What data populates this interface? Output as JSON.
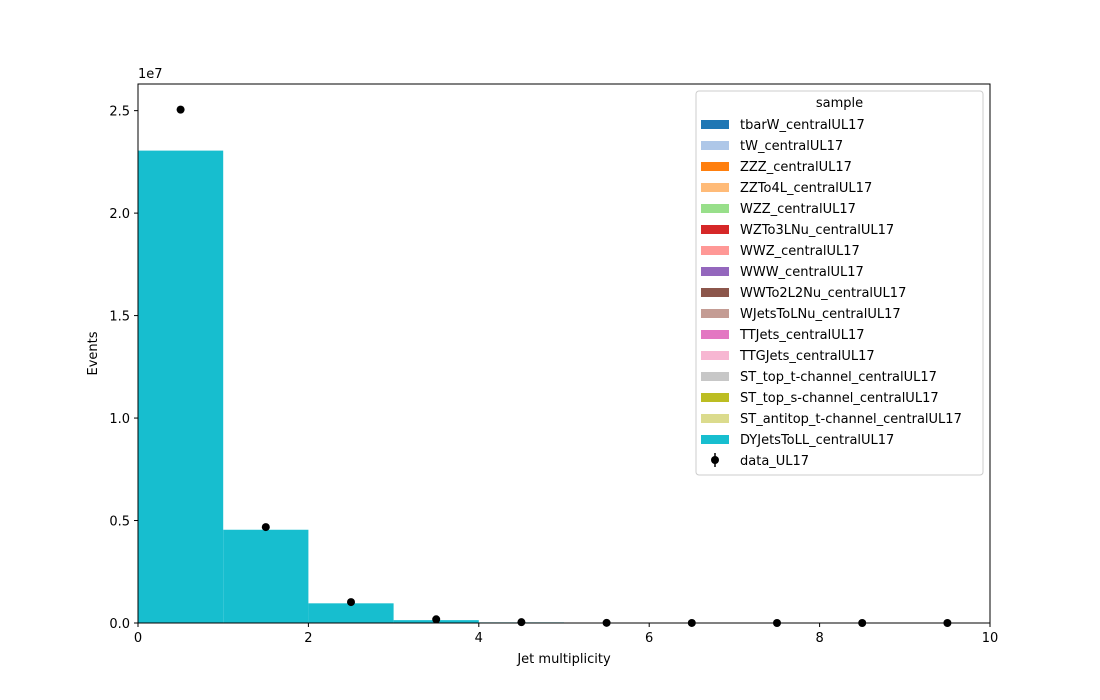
{
  "chart_data": {
    "type": "bar",
    "title": "",
    "xlabel": "Jet multiplicity",
    "ylabel": "Events",
    "y_offset_text": "1e7",
    "y_scale_factor": 10000000,
    "xlim": [
      0,
      10
    ],
    "ylim": [
      0,
      26300000
    ],
    "x_ticks": [
      0,
      2,
      4,
      6,
      8,
      10
    ],
    "x_tick_labels": [
      "0",
      "2",
      "4",
      "6",
      "8",
      "10"
    ],
    "y_ticks": [
      0,
      5000000,
      10000000,
      15000000,
      20000000,
      25000000
    ],
    "y_tick_labels": [
      "0.0",
      "0.5",
      "1.0",
      "1.5",
      "2.0",
      "2.5"
    ],
    "grid": false,
    "stacked": true,
    "bin_edges": [
      0,
      1,
      2,
      3,
      4,
      5,
      6,
      7,
      8,
      9,
      10
    ],
    "legend": {
      "title": "sample",
      "placement": "upper right"
    },
    "series": [
      {
        "name": "tbarW_centralUL17",
        "color": "#1f77b4",
        "values": [
          0,
          0,
          0,
          0,
          0,
          0,
          0,
          0,
          0,
          0
        ]
      },
      {
        "name": "tW_centralUL17",
        "color": "#aec7e8",
        "values": [
          0,
          0,
          0,
          0,
          0,
          0,
          0,
          0,
          0,
          0
        ]
      },
      {
        "name": "ZZZ_centralUL17",
        "color": "#ff7f0e",
        "values": [
          0,
          0,
          0,
          0,
          0,
          0,
          0,
          0,
          0,
          0
        ]
      },
      {
        "name": "ZZTo4L_centralUL17",
        "color": "#ffbb78",
        "values": [
          0,
          0,
          0,
          0,
          0,
          0,
          0,
          0,
          0,
          0
        ]
      },
      {
        "name": "WZZ_centralUL17",
        "color": "#98df8a",
        "values": [
          0,
          0,
          0,
          0,
          0,
          0,
          0,
          0,
          0,
          0
        ]
      },
      {
        "name": "WZTo3LNu_centralUL17",
        "color": "#d62728",
        "values": [
          0,
          0,
          0,
          0,
          0,
          0,
          0,
          0,
          0,
          0
        ]
      },
      {
        "name": "WWZ_centralUL17",
        "color": "#ff9896",
        "values": [
          0,
          0,
          0,
          0,
          0,
          0,
          0,
          0,
          0,
          0
        ]
      },
      {
        "name": "WWW_centralUL17",
        "color": "#9467bd",
        "values": [
          0,
          0,
          0,
          0,
          0,
          0,
          0,
          0,
          0,
          0
        ]
      },
      {
        "name": "WWTo2L2Nu_centralUL17",
        "color": "#8c564b",
        "values": [
          0,
          0,
          0,
          0,
          0,
          0,
          0,
          0,
          0,
          0
        ]
      },
      {
        "name": "WJetsToLNu_centralUL17",
        "color": "#c49c94",
        "values": [
          0,
          0,
          0,
          0,
          0,
          0,
          0,
          0,
          0,
          0
        ]
      },
      {
        "name": "TTJets_centralUL17",
        "color": "#e377c2",
        "values": [
          0,
          0,
          0,
          0,
          0,
          0,
          0,
          0,
          0,
          0
        ]
      },
      {
        "name": "TTGJets_centralUL17",
        "color": "#f7b6d2",
        "values": [
          0,
          0,
          0,
          0,
          0,
          0,
          0,
          0,
          0,
          0
        ]
      },
      {
        "name": "ST_top_t-channel_centralUL17",
        "color": "#c7c7c7",
        "values": [
          0,
          0,
          0,
          0,
          0,
          0,
          0,
          0,
          0,
          0
        ]
      },
      {
        "name": "ST_top_s-channel_centralUL17",
        "color": "#bcbd22",
        "values": [
          0,
          0,
          0,
          0,
          0,
          0,
          0,
          0,
          0,
          0
        ]
      },
      {
        "name": "ST_antitop_t-channel_centralUL17",
        "color": "#dbdb8d",
        "values": [
          0,
          0,
          0,
          0,
          0,
          0,
          0,
          0,
          0,
          0
        ]
      },
      {
        "name": "DYJetsToLL_centralUL17",
        "color": "#17becf",
        "values": [
          23050000,
          4550000,
          960000,
          140000,
          30000,
          5000,
          1000,
          0,
          0,
          0
        ]
      }
    ],
    "data_points": {
      "name": "data_UL17",
      "color": "#000000",
      "x": [
        0.5,
        1.5,
        2.5,
        3.5,
        4.5,
        5.5,
        6.5,
        7.5,
        8.5,
        9.5
      ],
      "y": [
        25050000,
        4680000,
        1020000,
        180000,
        40000,
        8000,
        2000,
        500,
        100,
        20
      ]
    }
  }
}
